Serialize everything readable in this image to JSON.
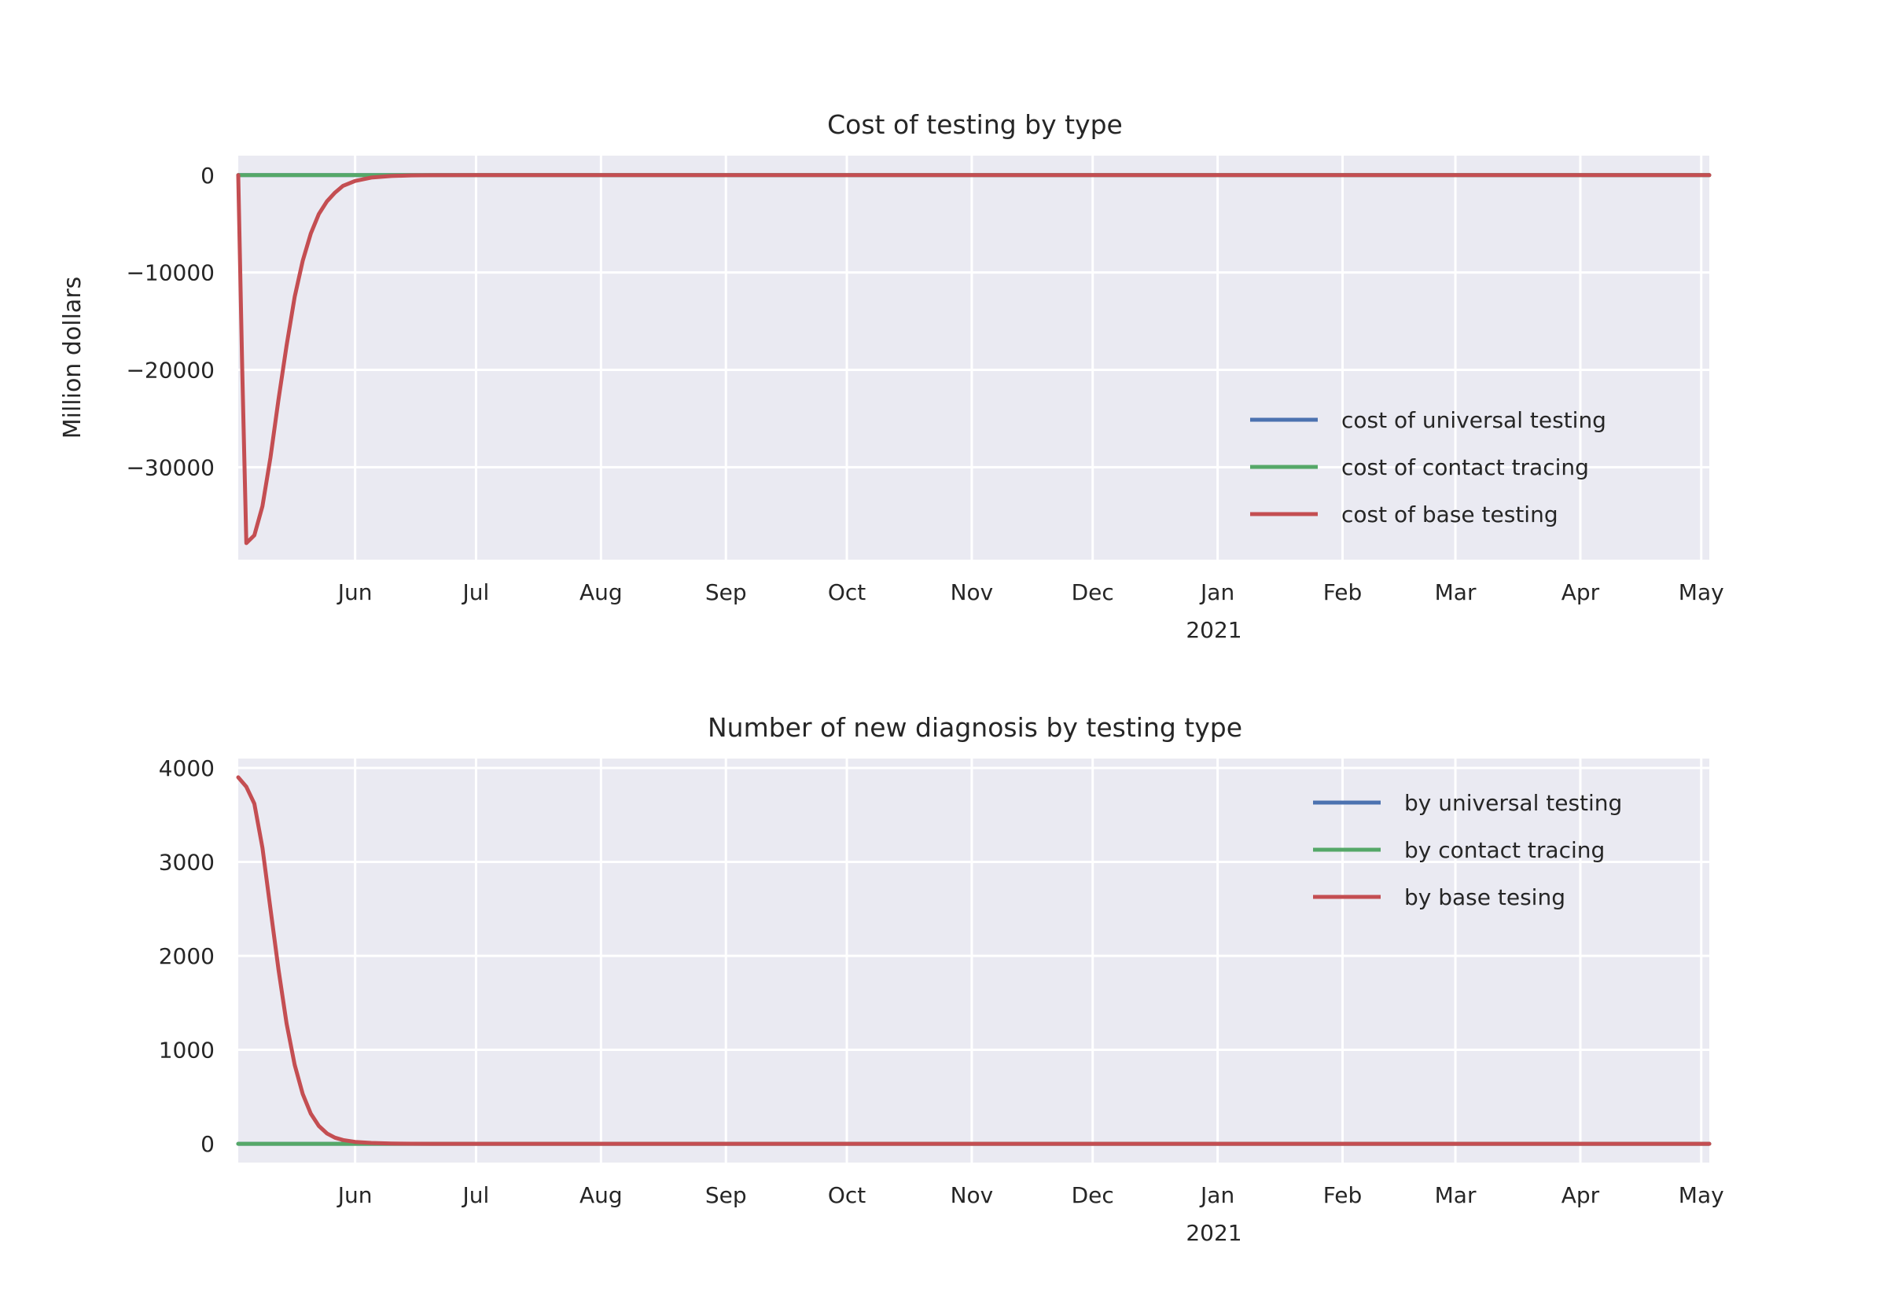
{
  "colors": {
    "axes_bg": "#EAEAF2",
    "grid": "#FFFFFF",
    "text": "#262626",
    "blue": "#4C72B0",
    "green": "#55A868",
    "red": "#C44E52"
  },
  "chart_data": [
    {
      "type": "line",
      "title": "Cost of testing by type",
      "xlabel": "",
      "ylabel": "Million dollars",
      "x_range": [
        "2020-05-03",
        "2021-05-03"
      ],
      "x_ticks": [
        "Jun",
        "Jul",
        "Aug",
        "Sep",
        "Oct",
        "Nov",
        "Dec",
        "Jan",
        "Feb",
        "Mar",
        "Apr",
        "May"
      ],
      "x_tick_dates": [
        "2020-06-01",
        "2020-07-01",
        "2020-08-01",
        "2020-09-01",
        "2020-10-01",
        "2020-11-01",
        "2020-12-01",
        "2021-01-01",
        "2021-02-01",
        "2021-03-01",
        "2021-04-01",
        "2021-05-01"
      ],
      "x_year_label": "2021",
      "ylim": [
        -39500,
        2000
      ],
      "y_ticks": [
        0,
        -10000,
        -20000,
        -30000
      ],
      "y_tick_labels": [
        "0",
        "−10000",
        "−20000",
        "−30000"
      ],
      "grid": true,
      "legend_position": "lower right",
      "series": [
        {
          "name": "cost of universal testing",
          "color": "#4C72B0",
          "x": [
            "2020-05-03",
            "2021-05-03"
          ],
          "y": [
            0,
            0
          ]
        },
        {
          "name": "cost of contact tracing",
          "color": "#55A868",
          "x": [
            "2020-05-03",
            "2020-06-15",
            "2021-05-03"
          ],
          "y": [
            0,
            0,
            0
          ]
        },
        {
          "name": "cost of base testing",
          "color": "#C44E52",
          "x": [
            "2020-05-03",
            "2020-05-04",
            "2020-05-05",
            "2020-05-07",
            "2020-05-09",
            "2020-05-11",
            "2020-05-13",
            "2020-05-15",
            "2020-05-17",
            "2020-05-19",
            "2020-05-21",
            "2020-05-23",
            "2020-05-25",
            "2020-05-27",
            "2020-05-29",
            "2020-06-01",
            "2020-06-05",
            "2020-06-10",
            "2020-06-15",
            "2020-06-20",
            "2020-07-01",
            "2021-05-03"
          ],
          "y": [
            0,
            -20000,
            -37800,
            -37000,
            -34000,
            -29000,
            -23000,
            -17500,
            -12500,
            -8800,
            -6000,
            -4000,
            -2700,
            -1800,
            -1100,
            -600,
            -250,
            -90,
            -30,
            -10,
            0,
            0
          ]
        }
      ]
    },
    {
      "type": "line",
      "title": "Number of new diagnosis by testing type",
      "xlabel": "",
      "ylabel": "",
      "x_range": [
        "2020-05-03",
        "2021-05-03"
      ],
      "x_ticks": [
        "Jun",
        "Jul",
        "Aug",
        "Sep",
        "Oct",
        "Nov",
        "Dec",
        "Jan",
        "Feb",
        "Mar",
        "Apr",
        "May"
      ],
      "x_tick_dates": [
        "2020-06-01",
        "2020-07-01",
        "2020-08-01",
        "2020-09-01",
        "2020-10-01",
        "2020-11-01",
        "2020-12-01",
        "2021-01-01",
        "2021-02-01",
        "2021-03-01",
        "2021-04-01",
        "2021-05-01"
      ],
      "x_year_label": "2021",
      "ylim": [
        -200,
        4100
      ],
      "y_ticks": [
        0,
        1000,
        2000,
        3000,
        4000
      ],
      "y_tick_labels": [
        "0",
        "1000",
        "2000",
        "3000",
        "4000"
      ],
      "grid": true,
      "legend_position": "upper right",
      "series": [
        {
          "name": "by universal testing",
          "color": "#4C72B0",
          "x": [
            "2020-05-03",
            "2021-05-03"
          ],
          "y": [
            0,
            0
          ]
        },
        {
          "name": "by contact tracing",
          "color": "#55A868",
          "x": [
            "2020-05-03",
            "2020-06-15",
            "2021-05-03"
          ],
          "y": [
            0,
            0,
            0
          ]
        },
        {
          "name": "by base tesing",
          "color": "#C44E52",
          "x": [
            "2020-05-03",
            "2020-05-05",
            "2020-05-07",
            "2020-05-09",
            "2020-05-11",
            "2020-05-13",
            "2020-05-15",
            "2020-05-17",
            "2020-05-19",
            "2020-05-21",
            "2020-05-23",
            "2020-05-25",
            "2020-05-27",
            "2020-05-29",
            "2020-06-01",
            "2020-06-05",
            "2020-06-10",
            "2020-06-15",
            "2020-06-20",
            "2020-07-01",
            "2021-05-03"
          ],
          "y": [
            3900,
            3800,
            3620,
            3150,
            2500,
            1850,
            1280,
            840,
            530,
            320,
            190,
            110,
            65,
            40,
            20,
            9,
            3,
            1,
            0,
            0,
            0
          ]
        }
      ]
    }
  ]
}
